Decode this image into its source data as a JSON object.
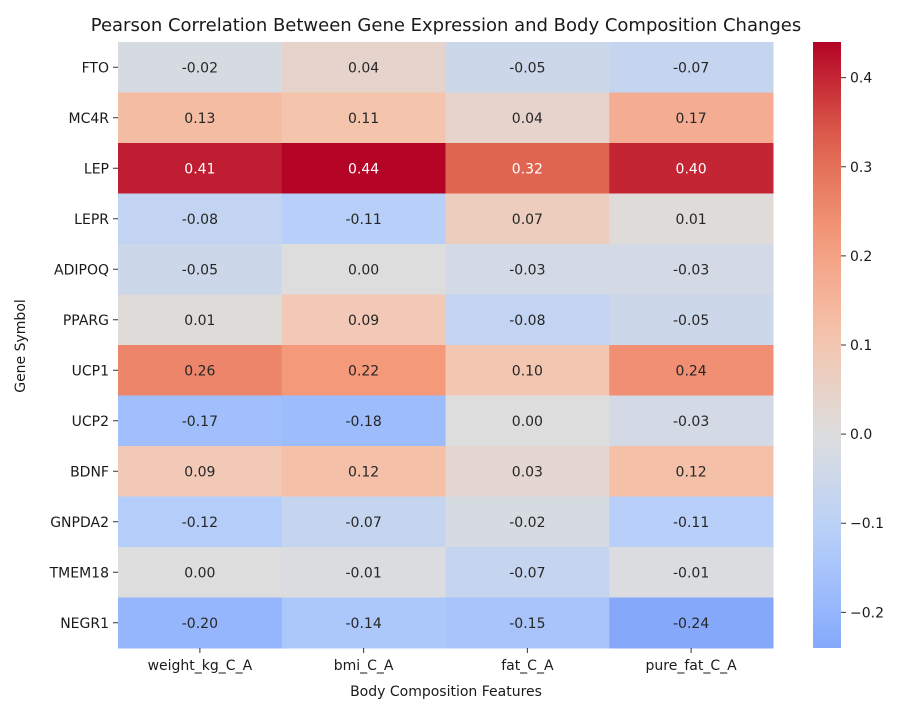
{
  "chart_data": {
    "type": "heatmap",
    "title": "Pearson Correlation Between Gene Expression and Body Composition Changes",
    "xlabel": "Body Composition Features",
    "ylabel": "Gene Symbol",
    "x_categories": [
      "weight_kg_C_A",
      "bmi_C_A",
      "fat_C_A",
      "pure_fat_C_A"
    ],
    "y_categories": [
      "FTO",
      "MC4R",
      "LEP",
      "LEPR",
      "ADIPOQ",
      "PPARG",
      "UCP1",
      "UCP2",
      "BDNF",
      "GNPDA2",
      "TMEM18",
      "NEGR1"
    ],
    "values": [
      [
        -0.02,
        0.04,
        -0.05,
        -0.07
      ],
      [
        0.13,
        0.11,
        0.04,
        0.17
      ],
      [
        0.41,
        0.44,
        0.32,
        0.4
      ],
      [
        -0.08,
        -0.11,
        0.07,
        0.01
      ],
      [
        -0.05,
        0.0,
        -0.03,
        -0.03
      ],
      [
        0.01,
        0.09,
        -0.08,
        -0.05
      ],
      [
        0.26,
        0.22,
        0.1,
        0.24
      ],
      [
        -0.17,
        -0.18,
        0.0,
        -0.03
      ],
      [
        0.09,
        0.12,
        0.03,
        0.12
      ],
      [
        -0.12,
        -0.07,
        -0.02,
        -0.11
      ],
      [
        0.0,
        -0.01,
        -0.07,
        -0.01
      ],
      [
        -0.2,
        -0.14,
        -0.15,
        -0.24
      ]
    ],
    "value_format": "0.00",
    "colormap": "coolwarm",
    "color_center": 0.0,
    "vmin": -0.24,
    "vmax": 0.44,
    "colorbar_ticks": [
      0.4,
      0.3,
      0.2,
      0.1,
      0.0,
      -0.1,
      -0.2
    ],
    "colorbar_tick_labels": [
      "0.4",
      "0.3",
      "0.2",
      "0.1",
      "0.0",
      "−0.1",
      "−0.2"
    ],
    "colorbar_position": "right",
    "grid": false
  }
}
